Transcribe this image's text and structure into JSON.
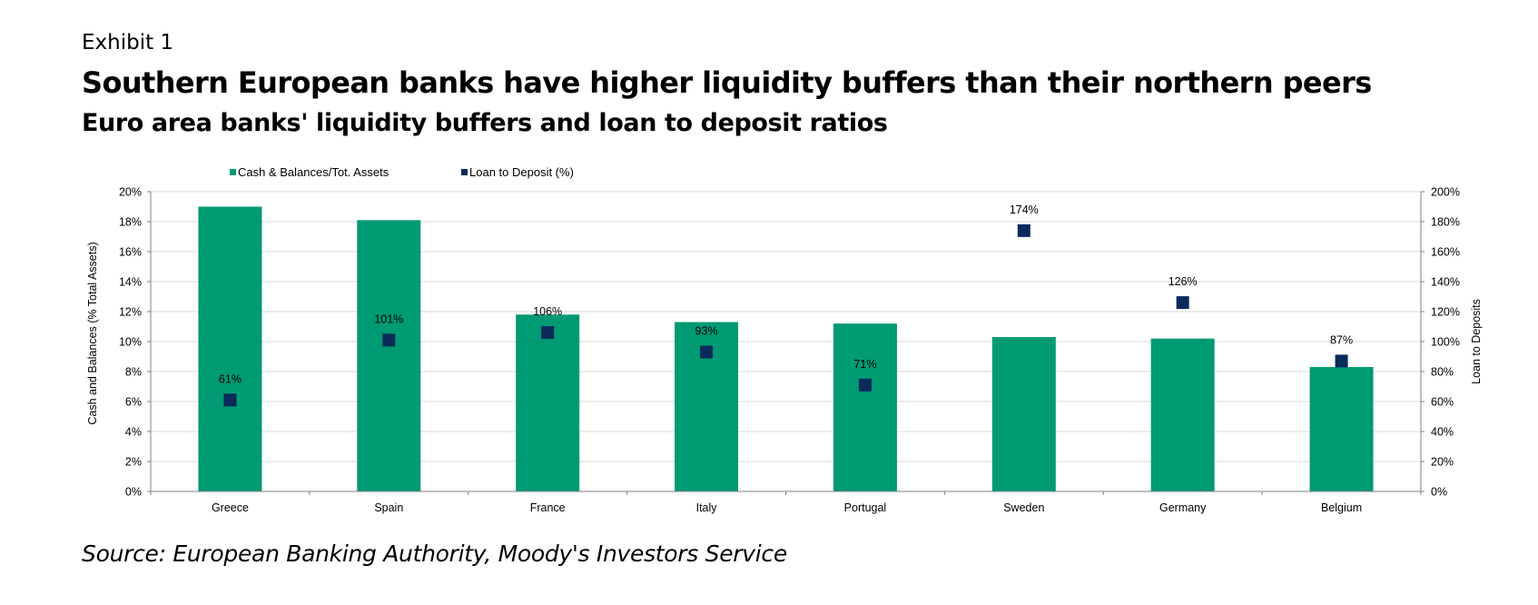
{
  "header": {
    "exhibit": "Exhibit 1",
    "title": "Southern European banks have higher liquidity buffers than their northern peers",
    "subtitle": "Euro area banks' liquidity buffers and loan to deposit ratios"
  },
  "footer": {
    "source": "Source: European Banking Authority, Moody's Investors Service"
  },
  "colors": {
    "bar": "#009a73",
    "marker": "#0b2a5c",
    "grid": "#d9d9d9",
    "axis": "#808080"
  },
  "chart_data": {
    "type": "bar",
    "categories": [
      "Greece",
      "Spain",
      "France",
      "Italy",
      "Portugal",
      "Sweden",
      "Germany",
      "Belgium"
    ],
    "series": [
      {
        "name": "Cash & Balances/Tot. Assets",
        "type": "bar",
        "axis": "left",
        "values": [
          19.0,
          18.1,
          11.8,
          11.3,
          11.2,
          10.3,
          10.2,
          8.3
        ]
      },
      {
        "name": "Loan to Deposit (%)",
        "type": "scatter",
        "axis": "right",
        "values": [
          61,
          101,
          106,
          93,
          71,
          174,
          126,
          87
        ],
        "labels": [
          "61%",
          "101%",
          "106%",
          "93%",
          "71%",
          "174%",
          "126%",
          "87%"
        ]
      }
    ],
    "ylabel": "Cash and Balances (% Total Assets)",
    "y2label": "Loan to Deposits",
    "ylim": [
      0,
      20
    ],
    "y2lim": [
      0,
      200
    ],
    "yticks": [
      "0%",
      "2%",
      "4%",
      "6%",
      "8%",
      "10%",
      "12%",
      "14%",
      "16%",
      "18%",
      "20%"
    ],
    "y2ticks": [
      "0%",
      "20%",
      "40%",
      "60%",
      "80%",
      "100%",
      "120%",
      "140%",
      "160%",
      "180%",
      "200%"
    ],
    "grid": true,
    "legend_position": "top-left"
  }
}
